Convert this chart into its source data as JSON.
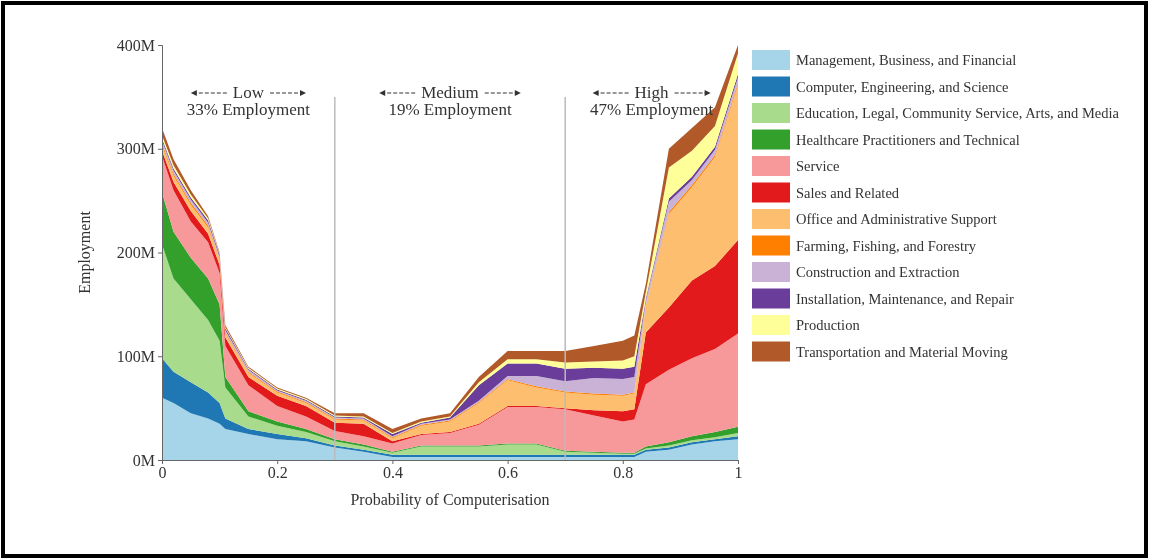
{
  "chart_data": {
    "type": "area",
    "stacked": true,
    "xlabel": "Probability of Computerisation",
    "ylabel": "Employment",
    "x": [
      0,
      0.02,
      0.05,
      0.08,
      0.1,
      0.11,
      0.15,
      0.2,
      0.25,
      0.3,
      0.35,
      0.4,
      0.45,
      0.5,
      0.55,
      0.6,
      0.65,
      0.7,
      0.75,
      0.8,
      0.82,
      0.84,
      0.88,
      0.92,
      0.96,
      1
    ],
    "xlim": [
      0,
      1
    ],
    "xticks": [
      0,
      0.2,
      0.4,
      0.6,
      0.8,
      1
    ],
    "ylim": [
      0,
      400
    ],
    "yticks": [
      {
        "value": 0,
        "label": "0M"
      },
      {
        "value": 100,
        "label": "100M"
      },
      {
        "value": 200,
        "label": "200M"
      },
      {
        "value": 300,
        "label": "300M"
      },
      {
        "value": 400,
        "label": "400M"
      }
    ],
    "grid": false,
    "legend": "right",
    "series": [
      {
        "name": "Management, Business, and Financial",
        "color": "#a6d4e8",
        "values": [
          60,
          55,
          45,
          40,
          35,
          30,
          25,
          20,
          18,
          12,
          8,
          3,
          3,
          3,
          3,
          3,
          3,
          3,
          3,
          3,
          3,
          8,
          10,
          15,
          18,
          20
        ]
      },
      {
        "name": "Computer, Engineering, and Science",
        "color": "#1f78b4",
        "values": [
          38,
          30,
          30,
          25,
          20,
          10,
          5,
          5,
          3,
          2,
          2,
          2,
          2,
          2,
          2,
          2,
          2,
          2,
          2,
          2,
          2,
          2,
          2,
          2,
          2,
          3
        ]
      },
      {
        "name": "Education, Legal, Community Service, Arts, and Media",
        "color": "#a8dc8c",
        "values": [
          110,
          90,
          80,
          70,
          60,
          30,
          12,
          8,
          6,
          4,
          3,
          2,
          8,
          8,
          8,
          10,
          10,
          3,
          2,
          1,
          1,
          1,
          2,
          2,
          2,
          3
        ]
      },
      {
        "name": "Healthcare Practitioners and Technical",
        "color": "#33a02c",
        "values": [
          50,
          45,
          40,
          40,
          35,
          10,
          5,
          4,
          3,
          2,
          2,
          1,
          1,
          1,
          1,
          1,
          1,
          1,
          1,
          1,
          1,
          2,
          3,
          4,
          5,
          6
        ]
      },
      {
        "name": "Service",
        "color": "#f7999a",
        "values": [
          35,
          40,
          35,
          35,
          30,
          30,
          25,
          15,
          12,
          8,
          8,
          8,
          10,
          12,
          20,
          35,
          35,
          40,
          35,
          30,
          32,
          60,
          70,
          75,
          80,
          90
        ]
      },
      {
        "name": "Sales and Related",
        "color": "#e31a1c",
        "values": [
          5,
          8,
          10,
          8,
          8,
          8,
          8,
          10,
          10,
          8,
          12,
          2,
          1,
          1,
          1,
          1,
          1,
          1,
          5,
          10,
          10,
          50,
          60,
          75,
          80,
          90
        ]
      },
      {
        "name": "Office and Administrative Support",
        "color": "#fdbf6f",
        "values": [
          5,
          6,
          6,
          6,
          5,
          4,
          4,
          3,
          3,
          3,
          3,
          3,
          8,
          10,
          20,
          25,
          18,
          15,
          15,
          15,
          15,
          25,
          90,
          90,
          105,
          150
        ]
      },
      {
        "name": "Farming, Fishing, and Forestry",
        "color": "#ff7f00",
        "values": [
          2,
          2,
          2,
          2,
          1,
          1,
          1,
          1,
          1,
          1,
          1,
          1,
          1,
          1,
          1,
          1,
          1,
          1,
          1,
          1,
          1,
          1,
          2,
          2,
          2,
          2
        ]
      },
      {
        "name": "Construction and Extraction",
        "color": "#cab2d6",
        "values": [
          3,
          3,
          3,
          3,
          2,
          2,
          2,
          1,
          1,
          1,
          1,
          1,
          1,
          1,
          1,
          3,
          10,
          10,
          15,
          15,
          15,
          5,
          10,
          5,
          5,
          5
        ]
      },
      {
        "name": "Installation, Maintenance, and Repair",
        "color": "#6a3d9a",
        "values": [
          2,
          2,
          2,
          2,
          2,
          2,
          1,
          1,
          1,
          1,
          1,
          2,
          1,
          2,
          15,
          12,
          12,
          12,
          10,
          10,
          10,
          2,
          3,
          3,
          3,
          3
        ]
      },
      {
        "name": "Production",
        "color": "#ffff99",
        "values": [
          3,
          3,
          3,
          2,
          1,
          1,
          1,
          1,
          1,
          1,
          1,
          1,
          1,
          1,
          3,
          4,
          4,
          6,
          6,
          8,
          10,
          6,
          30,
          25,
          20,
          20
        ]
      },
      {
        "name": "Transportation and Material Moving",
        "color": "#b15928",
        "values": [
          7,
          6,
          4,
          2,
          1,
          2,
          1,
          1,
          1,
          2,
          3,
          4,
          3,
          3,
          5,
          8,
          8,
          11,
          15,
          19,
          20,
          8,
          18,
          22,
          18,
          8
        ]
      }
    ],
    "ref_lines": [
      {
        "axis": "x",
        "value": 0.3,
        "color": "#bbbbbb"
      },
      {
        "axis": "x",
        "value": 0.7,
        "color": "#bbbbbb"
      }
    ],
    "annotations": [
      "Low",
      "33% Employment",
      "Medium",
      "19% Employment",
      "High",
      "47% Employment"
    ]
  }
}
